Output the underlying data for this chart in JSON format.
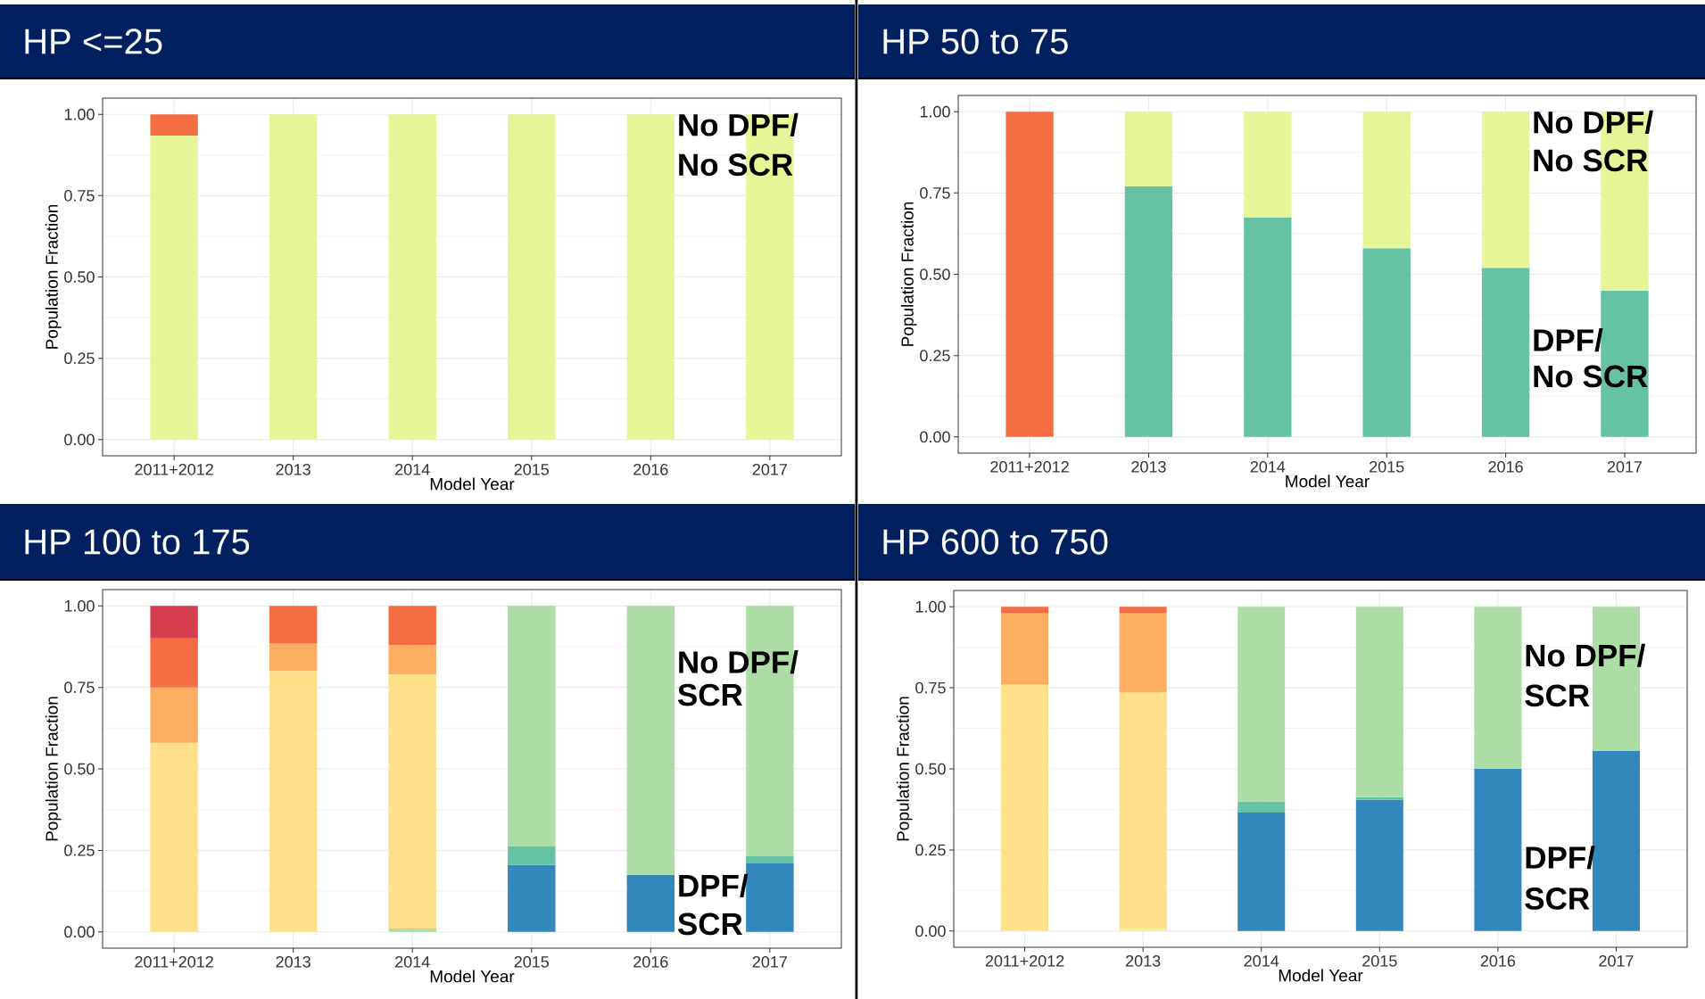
{
  "chart_data": [
    {
      "type": "bar",
      "stacked": true,
      "title": "HP <=25",
      "xlabel": "Model Year",
      "ylabel": "Population Fraction",
      "categories": [
        "2011+2012",
        "2013",
        "2014",
        "2015",
        "2016",
        "2017"
      ],
      "ylim": [
        -0.05,
        1.05
      ],
      "yticks": [
        {
          "value": 0,
          "label": "0.00"
        },
        {
          "value": 0.25,
          "label": "0.25"
        },
        {
          "value": 0.5,
          "label": "0.50"
        },
        {
          "value": 0.75,
          "label": "0.75"
        },
        {
          "value": 1,
          "label": "1.00"
        }
      ],
      "grid": true,
      "annotations": [
        "No DPF/",
        "No SCR"
      ],
      "series": [
        {
          "color": "#e6f598",
          "values": [
            0.935,
            1,
            1,
            1,
            1,
            1
          ]
        },
        {
          "color": "#f46d43",
          "values": [
            0.065,
            null,
            null,
            null,
            null,
            null
          ]
        }
      ]
    },
    {
      "type": "bar",
      "stacked": true,
      "title": "HP 50 to 75",
      "xlabel": "Model Year",
      "ylabel": "Population Fraction",
      "categories": [
        "2011+2012",
        "2013",
        "2014",
        "2015",
        "2016",
        "2017"
      ],
      "ylim": [
        -0.05,
        1.05
      ],
      "yticks": [
        {
          "value": 0,
          "label": "0.00"
        },
        {
          "value": 0.25,
          "label": "0.25"
        },
        {
          "value": 0.5,
          "label": "0.50"
        },
        {
          "value": 0.75,
          "label": "0.75"
        },
        {
          "value": 1,
          "label": "1.00"
        }
      ],
      "grid": true,
      "annotations": [
        "No DPF/",
        "No SCR",
        "DPF/",
        "No SCR"
      ],
      "series": [
        {
          "color": "#66c2a5",
          "values": [
            null,
            0.77,
            0.675,
            0.58,
            0.52,
            0.45
          ]
        },
        {
          "color": "#e6f598",
          "values": [
            null,
            0.23,
            0.325,
            0.42,
            0.48,
            0.55
          ]
        },
        {
          "color": "#f46d43",
          "values": [
            1,
            null,
            null,
            null,
            null,
            null
          ]
        }
      ]
    },
    {
      "type": "bar",
      "stacked": true,
      "title": "HP 100 to 175",
      "xlabel": "Model Year",
      "ylabel": "Population Fraction",
      "categories": [
        "2011+2012",
        "2013",
        "2014",
        "2015",
        "2016",
        "2017"
      ],
      "ylim": [
        -0.05,
        1.05
      ],
      "yticks": [
        {
          "value": 0,
          "label": "0.00"
        },
        {
          "value": 0.25,
          "label": "0.25"
        },
        {
          "value": 0.5,
          "label": "0.50"
        },
        {
          "value": 0.75,
          "label": "0.75"
        },
        {
          "value": 1,
          "label": "1.00"
        }
      ],
      "grid": true,
      "annotations": [
        "No DPF/",
        "SCR",
        "DPF/",
        "SCR"
      ],
      "series": [
        {
          "color": "#3288bd",
          "values": [
            null,
            null,
            null,
            0.205,
            0.175,
            0.21
          ]
        },
        {
          "color": "#66c2a5",
          "values": [
            null,
            null,
            null,
            0.057,
            null,
            0.022
          ]
        },
        {
          "color": "#abdda4",
          "values": [
            null,
            null,
            0.01,
            0.738,
            0.825,
            0.768
          ]
        },
        {
          "color": "#fee08b",
          "values": [
            0.58,
            0.8,
            0.78,
            null,
            null,
            null
          ]
        },
        {
          "color": "#fdae61",
          "values": [
            0.17,
            0.085,
            0.09,
            null,
            null,
            null
          ]
        },
        {
          "color": "#f46d43",
          "values": [
            0.15,
            0.115,
            0.12,
            null,
            null,
            null
          ]
        },
        {
          "color": "#d53e4f",
          "values": [
            0.1,
            null,
            null,
            null,
            null,
            null
          ]
        }
      ]
    },
    {
      "type": "bar",
      "stacked": true,
      "title": "HP 600 to 750",
      "xlabel": "Model Year",
      "ylabel": "Population Fraction",
      "categories": [
        "2011+2012",
        "2013",
        "2014",
        "2015",
        "2016",
        "2017"
      ],
      "ylim": [
        -0.05,
        1.05
      ],
      "yticks": [
        {
          "value": 0,
          "label": "0.00"
        },
        {
          "value": 0.25,
          "label": "0.25"
        },
        {
          "value": 0.5,
          "label": "0.50"
        },
        {
          "value": 0.75,
          "label": "0.75"
        },
        {
          "value": 1,
          "label": "1.00"
        }
      ],
      "grid": true,
      "annotations": [
        "No DPF/",
        "SCR",
        "DPF/",
        "SCR"
      ],
      "series": [
        {
          "color": "#3288bd",
          "values": [
            null,
            null,
            0.365,
            0.405,
            0.5,
            0.555
          ]
        },
        {
          "color": "#66c2a5",
          "values": [
            null,
            null,
            0.035,
            0.008,
            null,
            null
          ]
        },
        {
          "color": "#abdda4",
          "values": [
            null,
            null,
            0.6,
            0.587,
            0.5,
            0.445
          ]
        },
        {
          "color": "#e6f598",
          "values": [
            null,
            0.008,
            null,
            null,
            null,
            null
          ]
        },
        {
          "color": "#fee08b",
          "values": [
            0.76,
            0.727,
            null,
            null,
            null,
            null
          ]
        },
        {
          "color": "#fdae61",
          "values": [
            0.22,
            0.245,
            null,
            null,
            null,
            null
          ]
        },
        {
          "color": "#f46d43",
          "values": [
            0.02,
            0.02,
            null,
            null,
            null,
            null
          ]
        }
      ]
    }
  ]
}
